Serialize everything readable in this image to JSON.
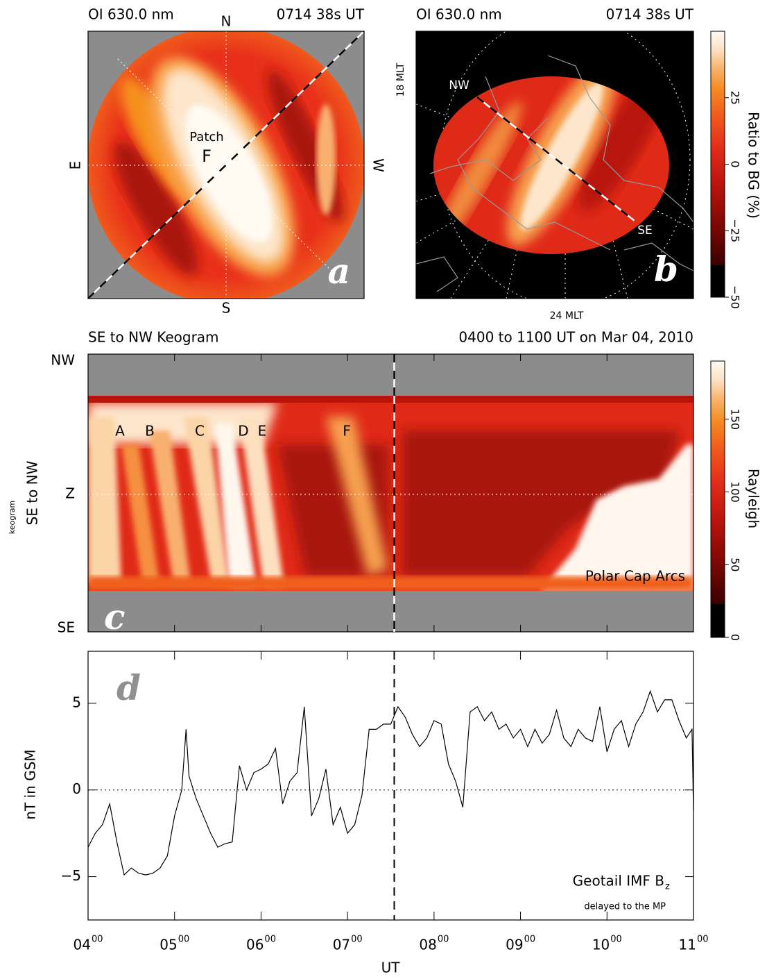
{
  "chart_data": [
    {
      "type": "allsky",
      "panel": "a",
      "title": "OI 630.0 nm",
      "time": "0714 38s UT",
      "directions": [
        "N",
        "S",
        "E",
        "W"
      ],
      "annotations": [
        "Patch",
        "F"
      ]
    },
    {
      "type": "map",
      "panel": "b",
      "title": "OI 630.0 nm",
      "time": "0714 38s UT",
      "mlt_labels": [
        "18 MLT",
        "24 MLT"
      ],
      "line_labels": [
        "NW",
        "SE"
      ],
      "colorbar": {
        "label": "Ratio to BG (%)",
        "lim": [
          -50,
          50
        ],
        "ticks": [
          {
            "value": -50,
            "label": "−50"
          },
          {
            "value": -25,
            "label": "−25"
          },
          0,
          25
        ]
      }
    },
    {
      "type": "keogram",
      "panel": "c",
      "title": "SE to NW Keogram",
      "time_range": "0400 to 1100 UT on Mar 04, 2010",
      "y_labels": [
        "NW",
        "Z",
        "SE"
      ],
      "ylabel": "SE to NW",
      "ylabel_small": "keogram",
      "event_labels": [
        "A",
        "B",
        "C",
        "D",
        "E",
        "F"
      ],
      "annotation": "Polar Cap Arcs",
      "xlim": [
        4,
        11
      ],
      "xticks": [
        4,
        5,
        6,
        7,
        8,
        9,
        10,
        11
      ],
      "marker_x": 7.54,
      "colorbar": {
        "label": "Rayleigh",
        "lim": [
          0,
          190
        ],
        "ticks": [
          0,
          50,
          100,
          150
        ]
      }
    },
    {
      "type": "line",
      "panel": "d",
      "ylabel": "nT in GSM",
      "xlabel": "UT",
      "legend": {
        "text": "Geotail IMF B",
        "subscript": "z",
        "note": "delayed to the MP"
      },
      "xlim": [
        4,
        11
      ],
      "xticks": [
        {
          "value": 4,
          "label": "04",
          "sup": "00"
        },
        {
          "value": 5,
          "label": "05",
          "sup": "00"
        },
        {
          "value": 6,
          "label": "06",
          "sup": "00"
        },
        {
          "value": 7,
          "label": "07",
          "sup": "00"
        },
        {
          "value": 8,
          "label": "08",
          "sup": "00"
        },
        {
          "value": 9,
          "label": "09",
          "sup": "00"
        },
        {
          "value": 10,
          "label": "10",
          "sup": "00"
        },
        {
          "value": 11,
          "label": "11",
          "sup": "00"
        }
      ],
      "ylim": [
        -7.5,
        8
      ],
      "yticks": [
        {
          "value": -5,
          "label": "−5"
        },
        0,
        5
      ],
      "zero_line": true,
      "marker_x": 7.54,
      "color": "#000000",
      "x": [
        4,
        4.083,
        4.167,
        4.25,
        4.333,
        4.417,
        4.5,
        4.583,
        4.667,
        4.75,
        4.833,
        4.917,
        5,
        5.083,
        5.133,
        5.167,
        5.25,
        5.333,
        5.417,
        5.5,
        5.583,
        5.667,
        5.75,
        5.833,
        5.917,
        6,
        6.083,
        6.167,
        6.25,
        6.333,
        6.417,
        6.5,
        6.583,
        6.667,
        6.75,
        6.833,
        6.917,
        7,
        7.083,
        7.167,
        7.25,
        7.333,
        7.417,
        7.5,
        7.583,
        7.667,
        7.75,
        7.833,
        7.917,
        8,
        8.083,
        8.167,
        8.25,
        8.333,
        8.417,
        8.5,
        8.583,
        8.667,
        8.75,
        8.833,
        8.917,
        9,
        9.083,
        9.167,
        9.25,
        9.333,
        9.417,
        9.5,
        9.583,
        9.667,
        9.75,
        9.833,
        9.917,
        10,
        10.083,
        10.167,
        10.25,
        10.333,
        10.417,
        10.5,
        10.583,
        10.667,
        10.75,
        10.833,
        10.917,
        10.983,
        11
      ],
      "values": [
        -3.3,
        -2.5,
        -2.0,
        -0.8,
        -3.0,
        -4.9,
        -4.5,
        -4.8,
        -4.9,
        -4.8,
        -4.5,
        -3.8,
        -1.5,
        0.0,
        3.5,
        0.8,
        -0.5,
        -1.5,
        -2.5,
        -3.3,
        -3.1,
        -3.0,
        1.4,
        0.0,
        1.0,
        1.2,
        1.5,
        2.4,
        -0.8,
        0.5,
        1.0,
        4.8,
        -1.5,
        -0.5,
        1.2,
        -2.0,
        -1.0,
        -2.5,
        -2.0,
        -0.3,
        3.5,
        3.5,
        3.8,
        3.8,
        4.8,
        4.2,
        3.2,
        2.5,
        3.0,
        4.0,
        3.8,
        1.5,
        0.5,
        -1.0,
        4.5,
        4.8,
        4.0,
        4.5,
        3.5,
        3.8,
        3.0,
        3.5,
        2.5,
        3.5,
        2.7,
        3.2,
        4.6,
        3.0,
        2.5,
        3.5,
        3.0,
        2.8,
        4.8,
        2.2,
        3.5,
        4.0,
        2.5,
        3.8,
        4.5,
        5.7,
        4.5,
        5.2,
        5.2,
        4.0,
        3.0,
        3.5,
        -1.2
      ]
    }
  ]
}
